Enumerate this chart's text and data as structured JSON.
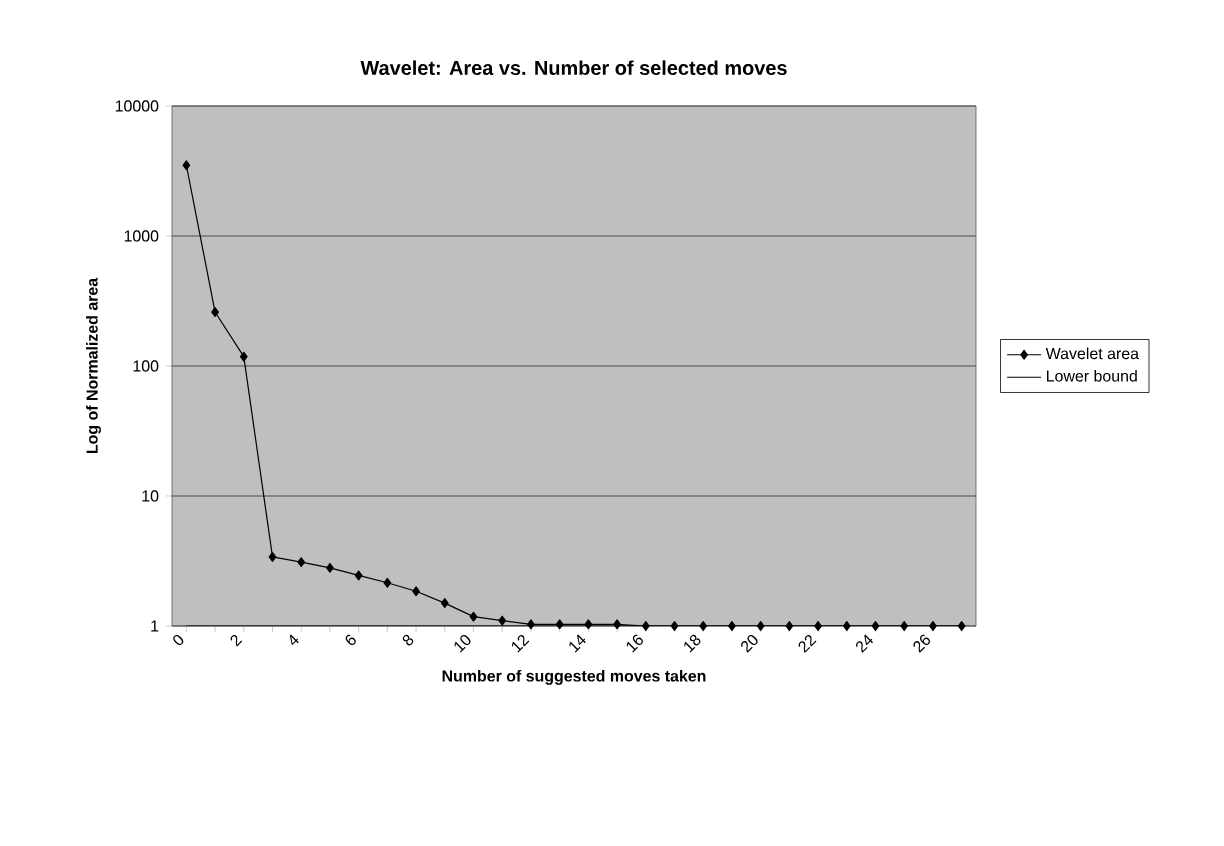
{
  "chart_data": {
    "type": "line",
    "title": "Wavelet: Area vs. Number of selected moves",
    "xlabel": "Number of suggested moves taken",
    "ylabel": "Log of Normalized area",
    "categories": [
      "0",
      null,
      "2",
      null,
      "4",
      null,
      "6",
      null,
      "8",
      null,
      "10",
      null,
      "12",
      null,
      "14",
      null,
      "16",
      null,
      "18",
      null,
      "20",
      null,
      "22",
      null,
      "24",
      null,
      "26",
      null
    ],
    "series": [
      {
        "name": "Wavelet area",
        "color": "#000000",
        "marker": "diamond",
        "values": [
          3500,
          260,
          118,
          3.4,
          3.1,
          2.8,
          2.45,
          2.15,
          1.85,
          1.5,
          1.18,
          1.1,
          1.03,
          1.03,
          1.03,
          1.03,
          1,
          1,
          1,
          1,
          1,
          1,
          1,
          1,
          1,
          1,
          1,
          1
        ]
      },
      {
        "name": "Lower bound",
        "color": "#000000",
        "marker": "none",
        "values": [
          1,
          1,
          1,
          1,
          1,
          1,
          1,
          1,
          1,
          1,
          1,
          1,
          1,
          1,
          1,
          1,
          1,
          1,
          1,
          1,
          1,
          1,
          1,
          1,
          1,
          1,
          1,
          1
        ]
      }
    ],
    "log": "y",
    "ylim": [
      1,
      10000
    ],
    "yticks": [
      1,
      10,
      100,
      1000,
      10000
    ],
    "grid": "y",
    "legend": "right",
    "line_style": "solid"
  }
}
